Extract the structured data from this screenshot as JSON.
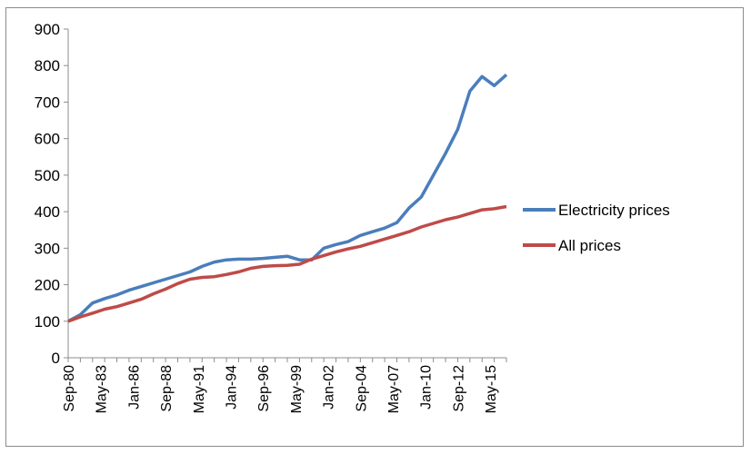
{
  "chart_data": {
    "type": "line",
    "title": "",
    "xlabel": "",
    "ylabel": "",
    "ylim": [
      0,
      900
    ],
    "yticks": [
      0,
      100,
      200,
      300,
      400,
      500,
      600,
      700,
      800,
      900
    ],
    "x_tick_labels": [
      "Sep-80",
      "May-83",
      "Jan-86",
      "Sep-88",
      "May-91",
      "Jan-94",
      "Sep-96",
      "May-99",
      "Jan-02",
      "Sep-04",
      "May-07",
      "Jan-10",
      "Sep-12",
      "May-15"
    ],
    "x": [
      "Sep-80",
      "Sep-81",
      "Sep-82",
      "Sep-83",
      "Sep-84",
      "Sep-85",
      "Sep-86",
      "Sep-87",
      "Sep-88",
      "Sep-89",
      "Sep-90",
      "Sep-91",
      "Sep-92",
      "Sep-93",
      "Sep-94",
      "Sep-95",
      "Sep-96",
      "Sep-97",
      "Sep-98",
      "Sep-99",
      "Sep-00",
      "Sep-01",
      "Sep-02",
      "Sep-03",
      "Sep-04",
      "Sep-05",
      "Sep-06",
      "Sep-07",
      "Sep-08",
      "Sep-09",
      "Sep-10",
      "Sep-11",
      "Sep-12",
      "Sep-13",
      "Sep-14",
      "Sep-15",
      "Sep-16"
    ],
    "series": [
      {
        "name": "Electricity prices",
        "color": "#4a7ebb",
        "values": [
          100,
          118,
          150,
          162,
          172,
          185,
          195,
          205,
          215,
          225,
          235,
          250,
          262,
          268,
          270,
          270,
          272,
          275,
          278,
          268,
          268,
          300,
          310,
          318,
          335,
          345,
          355,
          370,
          410,
          440,
          500,
          560,
          625,
          730,
          770,
          745,
          775
        ]
      },
      {
        "name": "All prices",
        "color": "#be4b48",
        "values": [
          100,
          112,
          122,
          133,
          140,
          150,
          160,
          175,
          188,
          203,
          215,
          220,
          222,
          228,
          235,
          245,
          250,
          252,
          253,
          256,
          270,
          280,
          290,
          298,
          305,
          315,
          325,
          335,
          345,
          358,
          368,
          378,
          385,
          395,
          405,
          408,
          414
        ]
      }
    ],
    "legend_position": "right",
    "grid": false
  }
}
